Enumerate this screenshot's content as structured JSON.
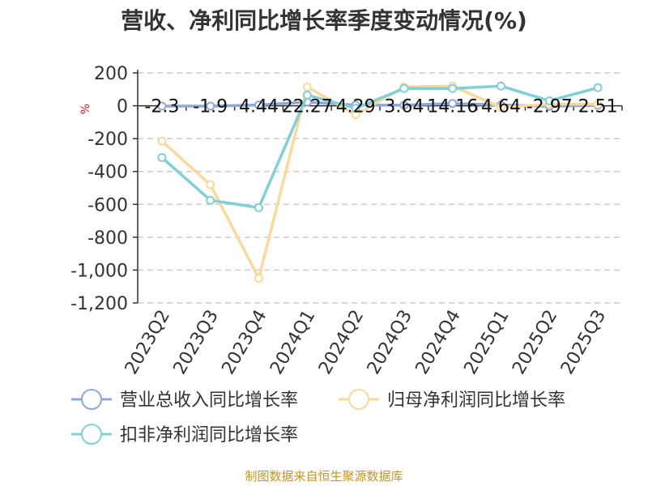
{
  "title": "营收、净利同比增长率季度变动情况(%)",
  "footer": "制图数据来自恒生聚源数据库",
  "chart_data": {
    "type": "line",
    "title": "营收、净利同比增长率季度变动情况(%)",
    "ylabel": "%",
    "ylim": [
      -1200,
      200
    ],
    "yticks": [
      200,
      0,
      -200,
      -400,
      -600,
      -800,
      -1000,
      -1200
    ],
    "ytick_labels": [
      "200",
      "0",
      "-200",
      "-400",
      "-600",
      "-800",
      "-1,000",
      "-1,200"
    ],
    "grid": true,
    "legend_position": "bottom",
    "categories": [
      "2023Q2",
      "2023Q3",
      "2023Q4",
      "2024Q1",
      "2024Q2",
      "2024Q3",
      "2024Q4",
      "2025Q1",
      "2025Q2",
      "2025Q3"
    ],
    "data_labels": [
      "-2.3",
      "-1.9",
      "4.44",
      "22.27",
      "4.29",
      "3.64",
      "14.16",
      "4.64",
      "-2.97",
      "2.51"
    ],
    "series": [
      {
        "name": "营业总收入同比增长率",
        "color": "#8fa8d8",
        "values": [
          -2.3,
          -1.9,
          4.44,
          22.27,
          4.29,
          3.64,
          14.16,
          4.64,
          -2.97,
          2.51
        ]
      },
      {
        "name": "归母净利润同比增长率",
        "color": "#fad99a",
        "values": [
          -215,
          -480,
          -1050,
          115,
          -55,
          115,
          120,
          -10,
          10,
          10
        ]
      },
      {
        "name": "扣非净利润同比增长率",
        "color": "#80d0d6",
        "values": [
          -315,
          -575,
          -620,
          65,
          -15,
          105,
          105,
          120,
          30,
          110
        ]
      }
    ]
  }
}
